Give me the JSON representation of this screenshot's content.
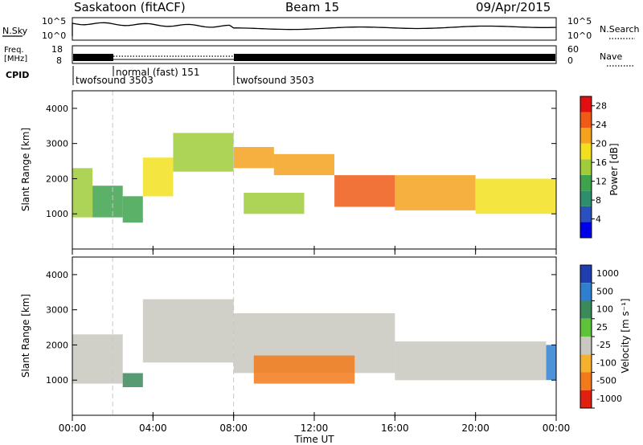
{
  "header": {
    "site": "Saskatoon (fitACF)",
    "beam": "Beam 15",
    "date": "09/Apr/2015"
  },
  "top_panels": {
    "nsky": {
      "label": "N.Sky",
      "ticks": [
        "10^5",
        "10^0"
      ],
      "right_ticks": [
        "10^5",
        "10^0"
      ],
      "right_label": "N.Search"
    },
    "freq": {
      "label_line1": "Freq.",
      "label_line2": "[MHz]",
      "ticks": [
        "18",
        "8"
      ],
      "right_ticks": [
        "60",
        "0"
      ],
      "right_label": "Nave"
    },
    "cpid": {
      "label": "CPID",
      "segments": [
        {
          "label": "twofsound 3503",
          "start_hour": 0,
          "end_hour": 2.0
        },
        {
          "label": "normal (fast) 151",
          "start_hour": 2.0,
          "end_hour": 8.0
        },
        {
          "label": "twofsound 3503",
          "start_hour": 8.0,
          "end_hour": 24.0
        }
      ]
    }
  },
  "chart_data": [
    {
      "type": "heatmap",
      "name": "power",
      "ylabel": "Slant Range [km]",
      "ylim": [
        0,
        4500
      ],
      "yticks": [
        "1000",
        "2000",
        "3000",
        "4000"
      ],
      "xlim_hours": [
        0,
        24
      ],
      "colorbar": {
        "label": "Power [dB]",
        "ticks": [
          "4",
          "8",
          "12",
          "16",
          "20",
          "24",
          "28"
        ],
        "range": [
          0,
          30
        ],
        "colors": [
          "#0000e8",
          "#2a4fbf",
          "#2e8f6e",
          "#3fa34d",
          "#a0cc3a",
          "#f2e01e",
          "#f5a21e",
          "#ef5a17",
          "#e01010"
        ]
      },
      "bands": [
        {
          "start_hour": 0.0,
          "end_hour": 1.0,
          "range_km": [
            900,
            2300
          ],
          "power_db": 14
        },
        {
          "start_hour": 1.0,
          "end_hour": 2.5,
          "range_km": [
            900,
            1800
          ],
          "power_db": 12
        },
        {
          "start_hour": 2.5,
          "end_hour": 3.5,
          "range_km": [
            750,
            1500
          ],
          "power_db": 10
        },
        {
          "start_hour": 3.5,
          "end_hour": 5.0,
          "range_km": [
            1500,
            2600
          ],
          "power_db": 18
        },
        {
          "start_hour": 5.0,
          "end_hour": 8.0,
          "range_km": [
            2200,
            3300
          ],
          "power_db": 16
        },
        {
          "start_hour": 8.0,
          "end_hour": 10.0,
          "range_km": [
            2300,
            2900
          ],
          "power_db": 20
        },
        {
          "start_hour": 10.0,
          "end_hour": 13.0,
          "range_km": [
            2100,
            2700
          ],
          "power_db": 22
        },
        {
          "start_hour": 13.0,
          "end_hour": 16.0,
          "range_km": [
            1200,
            2100
          ],
          "power_db": 24
        },
        {
          "start_hour": 16.0,
          "end_hour": 20.0,
          "range_km": [
            1100,
            2100
          ],
          "power_db": 22
        },
        {
          "start_hour": 20.0,
          "end_hour": 24.0,
          "range_km": [
            1000,
            2000
          ],
          "power_db": 18
        },
        {
          "start_hour": 8.5,
          "end_hour": 11.5,
          "range_km": [
            1000,
            1600
          ],
          "power_db": 14
        }
      ]
    },
    {
      "type": "heatmap",
      "name": "velocity",
      "ylabel": "Slant Range [km]",
      "ylim": [
        0,
        4500
      ],
      "yticks": [
        "1000",
        "2000",
        "3000",
        "4000"
      ],
      "xlim_hours": [
        0,
        24
      ],
      "xticks": [
        "00:00",
        "04:00",
        "08:00",
        "12:00",
        "16:00",
        "20:00",
        "00:00"
      ],
      "xlabel": "Time UT",
      "colorbar": {
        "label": "Velocity [m s⁻¹]",
        "ticks": [
          "1000",
          "500",
          "100",
          "25",
          "-25",
          "-100",
          "-500",
          "-1000"
        ],
        "colors": [
          "#1f3fb0",
          "#2f7fd0",
          "#3a8a5a",
          "#5ec23a",
          "#c8c8c0",
          "#f5b030",
          "#f27a1a",
          "#e02010"
        ]
      },
      "bands": [
        {
          "start_hour": 0.0,
          "end_hour": 2.5,
          "range_km": [
            900,
            2300
          ],
          "velocity_ms": 0
        },
        {
          "start_hour": 2.5,
          "end_hour": 3.5,
          "range_km": [
            800,
            1200
          ],
          "velocity_ms": 150
        },
        {
          "start_hour": 3.5,
          "end_hour": 8.0,
          "range_km": [
            1500,
            3300
          ],
          "velocity_ms": 0
        },
        {
          "start_hour": 8.0,
          "end_hour": 16.0,
          "range_km": [
            1200,
            2900
          ],
          "velocity_ms": 0
        },
        {
          "start_hour": 16.0,
          "end_hour": 23.5,
          "range_km": [
            1000,
            2100
          ],
          "velocity_ms": 0
        },
        {
          "start_hour": 9.0,
          "end_hour": 14.0,
          "range_km": [
            900,
            1700
          ],
          "velocity_ms": -300
        },
        {
          "start_hour": 23.5,
          "end_hour": 24.0,
          "range_km": [
            1000,
            2000
          ],
          "velocity_ms": 600
        }
      ]
    }
  ]
}
